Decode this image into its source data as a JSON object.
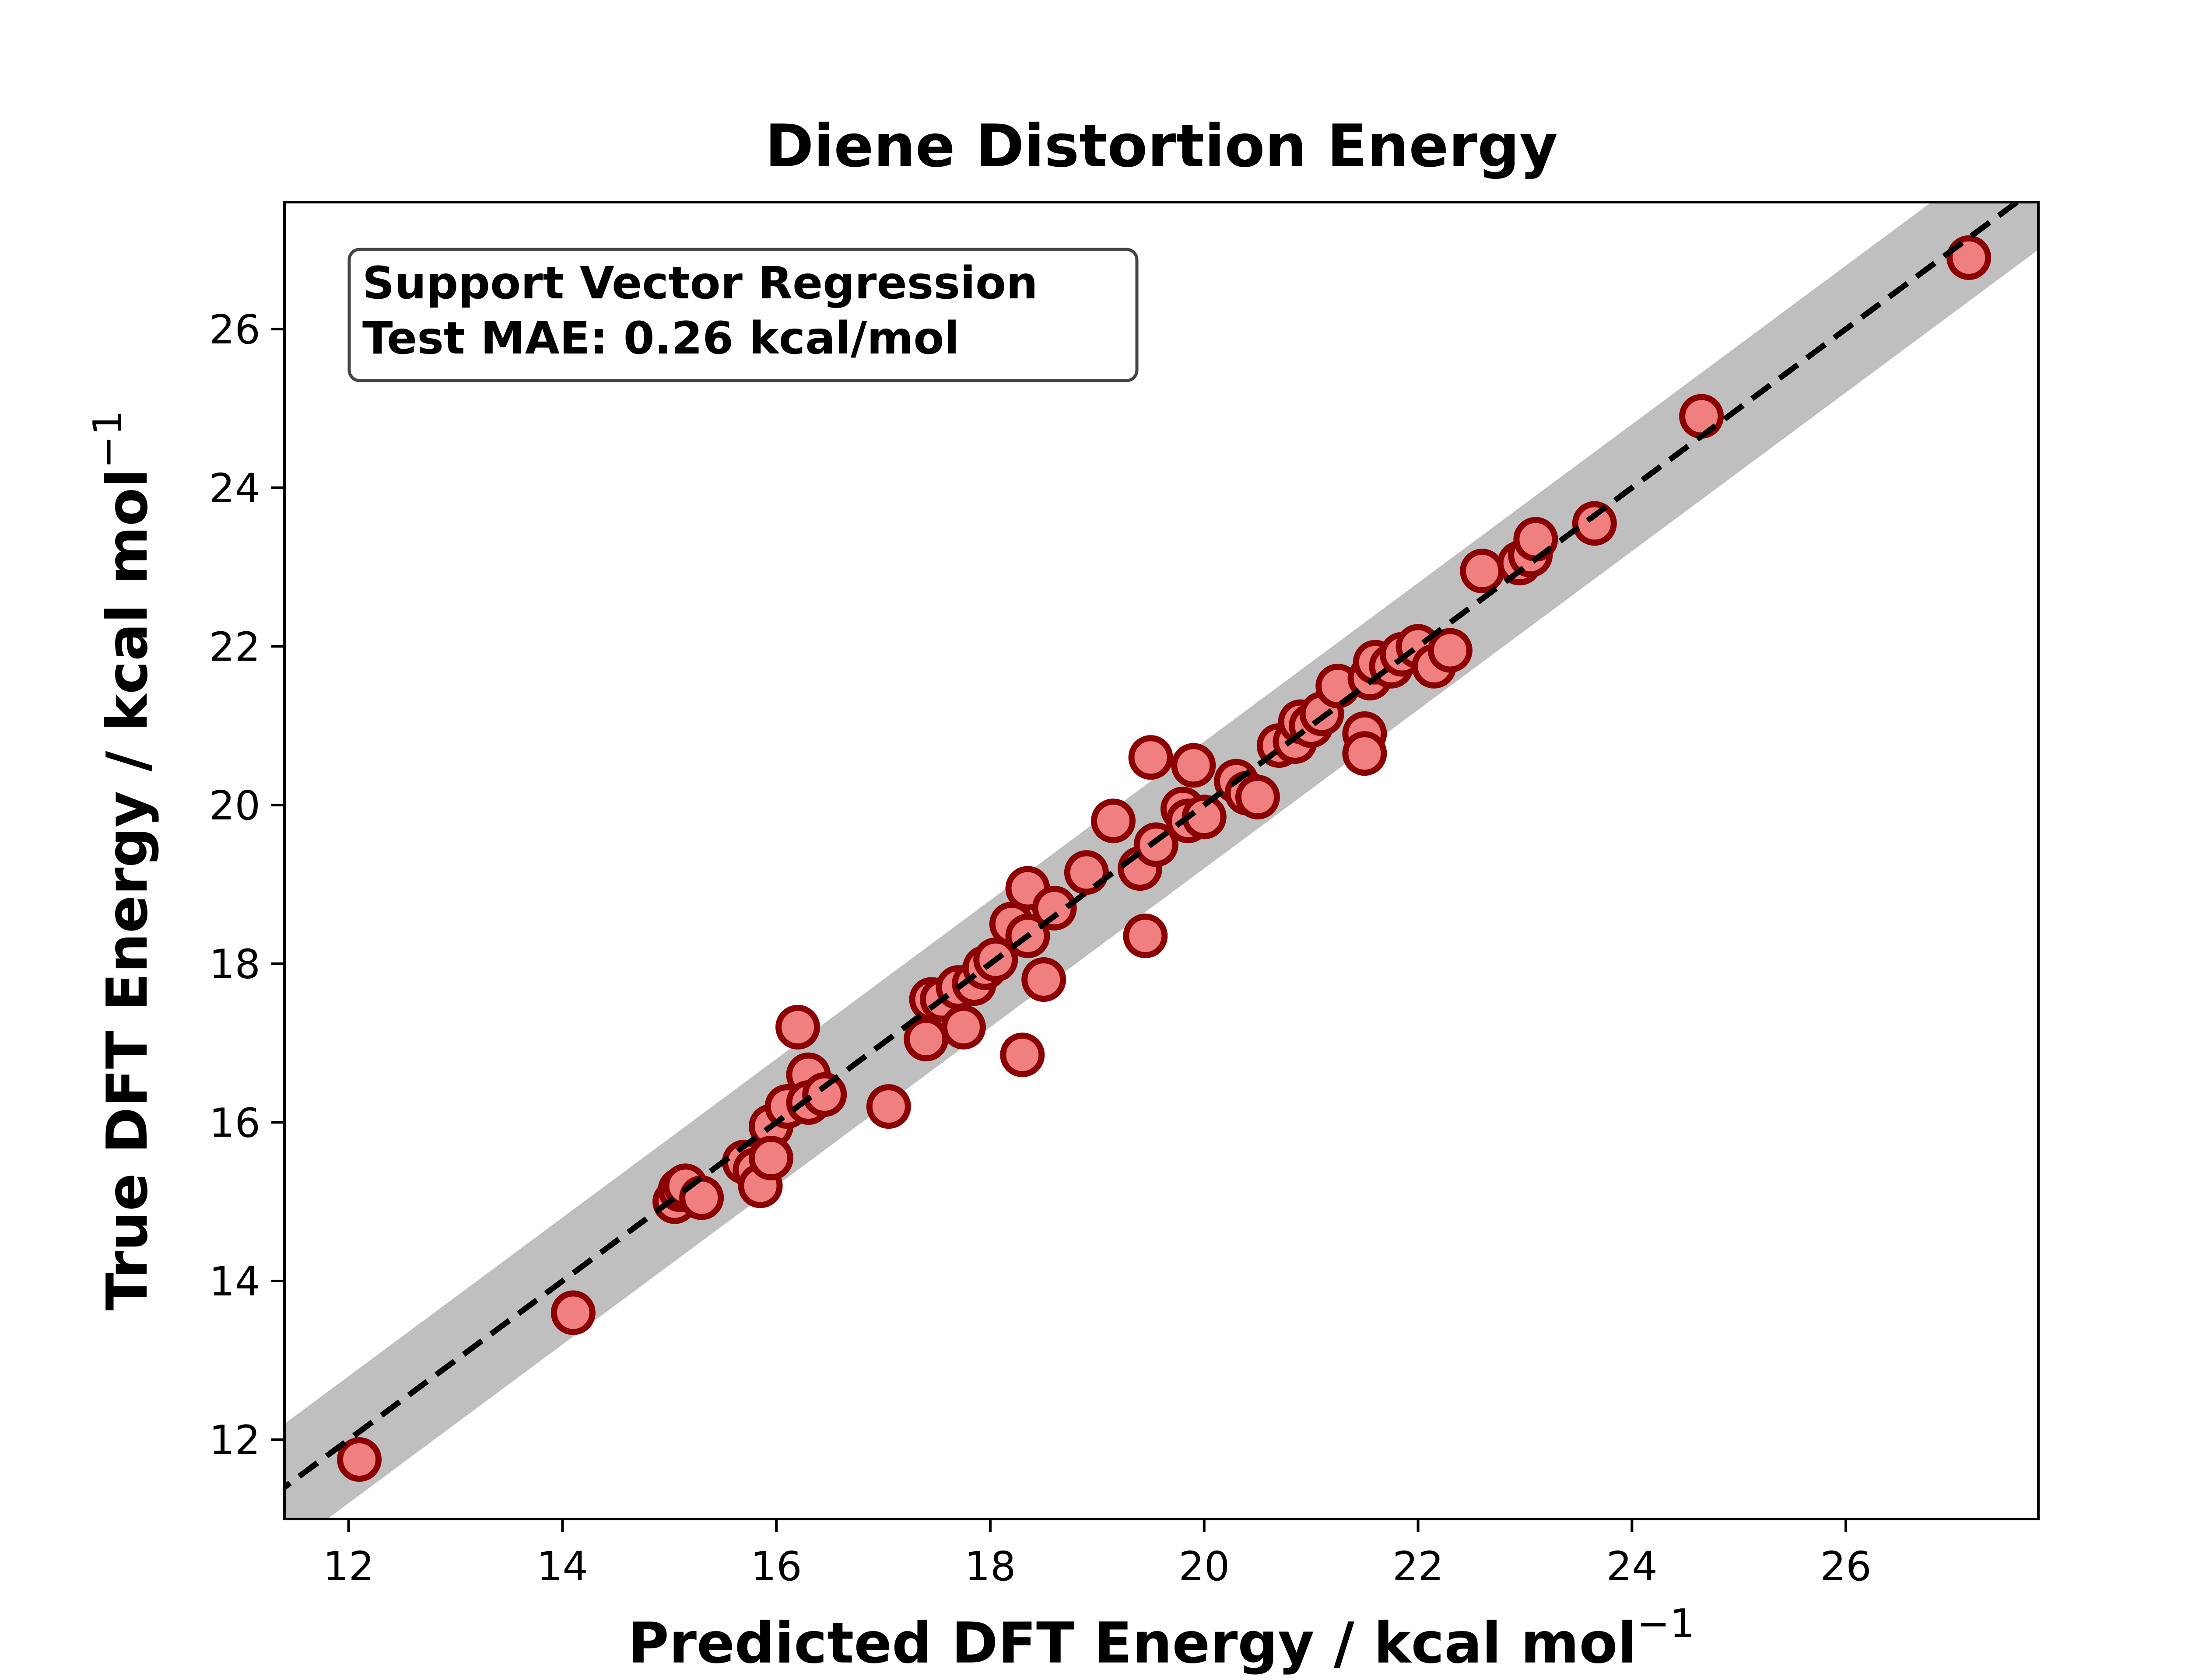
{
  "chart_data": {
    "type": "scatter",
    "title": "Diene Distortion Energy",
    "xlabel": "Predicted DFT Energy / kcal mol",
    "ylabel": "True DFT Energy / kcal mol",
    "unit_superscript": "−1",
    "xlim": [
      11.4,
      27.8
    ],
    "ylim": [
      11.0,
      27.6
    ],
    "xticks": [
      12,
      14,
      16,
      18,
      20,
      22,
      24,
      26
    ],
    "yticks": [
      12,
      14,
      16,
      18,
      20,
      22,
      24,
      26
    ],
    "annotation": {
      "line1": "Support Vector Regression",
      "line2": "Test MAE: 0.26 kcal/mol"
    },
    "parity_line": {
      "style": "dashed",
      "color": "#000000"
    },
    "error_band_halfwidth": 0.8,
    "colors": {
      "marker_fill": "#f08080",
      "marker_edge": "#8b0000",
      "band": "#bfbfbf",
      "axes": "#000000"
    },
    "grid": false,
    "points": [
      [
        12.1,
        11.75
      ],
      [
        14.1,
        13.6
      ],
      [
        15.05,
        15.0
      ],
      [
        15.1,
        15.15
      ],
      [
        15.15,
        15.2
      ],
      [
        15.3,
        15.05
      ],
      [
        15.7,
        15.5
      ],
      [
        15.8,
        15.4
      ],
      [
        15.85,
        15.2
      ],
      [
        15.95,
        15.95
      ],
      [
        15.95,
        15.55
      ],
      [
        16.1,
        16.2
      ],
      [
        16.2,
        17.2
      ],
      [
        16.3,
        16.6
      ],
      [
        16.3,
        16.25
      ],
      [
        16.45,
        16.35
      ],
      [
        17.05,
        16.2
      ],
      [
        17.4,
        17.05
      ],
      [
        17.45,
        17.55
      ],
      [
        17.55,
        17.55
      ],
      [
        17.7,
        17.7
      ],
      [
        17.75,
        17.2
      ],
      [
        17.85,
        17.75
      ],
      [
        17.95,
        17.95
      ],
      [
        18.05,
        18.05
      ],
      [
        18.2,
        18.5
      ],
      [
        18.3,
        16.85
      ],
      [
        18.35,
        18.95
      ],
      [
        18.35,
        18.35
      ],
      [
        18.5,
        17.8
      ],
      [
        18.6,
        18.7
      ],
      [
        18.9,
        19.15
      ],
      [
        19.15,
        19.8
      ],
      [
        19.4,
        19.2
      ],
      [
        19.45,
        18.35
      ],
      [
        19.5,
        20.6
      ],
      [
        19.55,
        19.5
      ],
      [
        19.8,
        19.95
      ],
      [
        19.85,
        19.8
      ],
      [
        19.9,
        20.5
      ],
      [
        20.0,
        19.85
      ],
      [
        20.3,
        20.3
      ],
      [
        20.4,
        20.15
      ],
      [
        20.5,
        20.1
      ],
      [
        20.7,
        20.75
      ],
      [
        20.85,
        20.8
      ],
      [
        20.9,
        21.05
      ],
      [
        21.0,
        21.0
      ],
      [
        21.1,
        21.15
      ],
      [
        21.25,
        21.5
      ],
      [
        21.5,
        20.9
      ],
      [
        21.5,
        20.65
      ],
      [
        21.55,
        21.6
      ],
      [
        21.6,
        21.8
      ],
      [
        21.75,
        21.75
      ],
      [
        21.85,
        21.9
      ],
      [
        22.0,
        22.0
      ],
      [
        22.15,
        21.75
      ],
      [
        22.3,
        21.95
      ],
      [
        22.6,
        22.95
      ],
      [
        22.95,
        23.05
      ],
      [
        23.05,
        23.15
      ],
      [
        23.1,
        23.35
      ],
      [
        23.65,
        23.55
      ],
      [
        24.65,
        24.9
      ],
      [
        27.15,
        26.9
      ]
    ]
  }
}
